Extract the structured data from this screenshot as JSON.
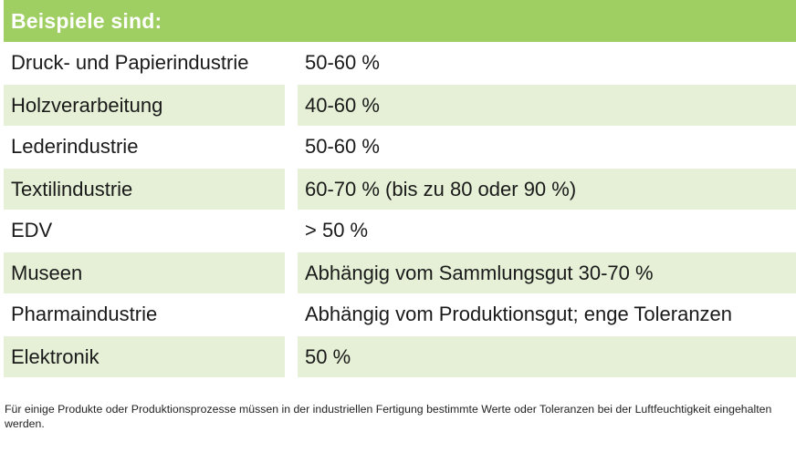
{
  "header": {
    "title": "Beispiele sind:"
  },
  "table": {
    "rows": [
      {
        "industry": "Druck- und Papierindustrie",
        "value": "50-60 %"
      },
      {
        "industry": "Holzverarbeitung",
        "value": "40-60 %"
      },
      {
        "industry": "Lederindustrie",
        "value": "50-60 %"
      },
      {
        "industry": "Textilindustrie",
        "value": "60-70 % (bis zu 80 oder 90 %)"
      },
      {
        "industry": "EDV",
        "value": "> 50 %"
      },
      {
        "industry": "Museen",
        "value": "Abhängig vom Sammlungsgut 30-70 %"
      },
      {
        "industry": "Pharmaindustrie",
        "value": "Abhängig vom Produktionsgut; enge Toleranzen"
      },
      {
        "industry": "Elektronik",
        "value": "50 %"
      }
    ]
  },
  "footnote": "Für einige Produkte oder Produktionsprozesse müssen in der industriellen Fertigung bestimmte Werte oder Toleranzen bei der Luftfeuchtigkeit eingehalten werden.",
  "colors": {
    "header_bg": "#9fcf62",
    "shaded_row_bg": "#e5f0d6"
  }
}
